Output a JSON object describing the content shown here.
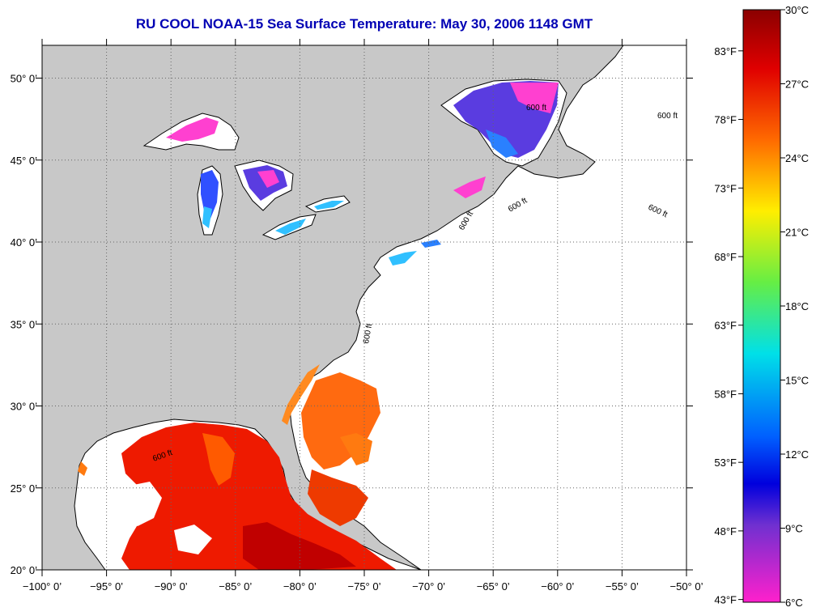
{
  "title": "RU COOL  NOAA-15  Sea Surface Temperature:  May 30, 2006 1148 GMT",
  "map": {
    "lon_range": [
      -100,
      -50
    ],
    "lat_range": [
      20,
      52
    ],
    "lon_ticks": [
      {
        "value": -100,
        "label": "−100° 0’"
      },
      {
        "value": -95,
        "label": "−95° 0’"
      },
      {
        "value": -90,
        "label": "−90° 0’"
      },
      {
        "value": -85,
        "label": "−85° 0’"
      },
      {
        "value": -80,
        "label": "−80° 0’"
      },
      {
        "value": -75,
        "label": "−75° 0’"
      },
      {
        "value": -70,
        "label": "−70° 0’"
      },
      {
        "value": -65,
        "label": "−65° 0’"
      },
      {
        "value": -60,
        "label": "−60° 0’"
      },
      {
        "value": -55,
        "label": "−55° 0’"
      },
      {
        "value": -50,
        "label": "−50° 0’"
      }
    ],
    "lat_ticks": [
      {
        "value": 20,
        "label": "20° 0’"
      },
      {
        "value": 25,
        "label": "25° 0’"
      },
      {
        "value": 30,
        "label": "30° 0’"
      },
      {
        "value": 35,
        "label": "35° 0’"
      },
      {
        "value": 40,
        "label": "40° 0’"
      },
      {
        "value": 45,
        "label": "45° 0’"
      },
      {
        "value": 50,
        "label": "50° 0’"
      }
    ],
    "contour_labels": [
      "600 ft",
      "600 ft",
      "600 ft",
      "600 ft",
      "600 ft",
      "600 ft",
      "600 ft"
    ],
    "colors": {
      "land": "#c8c8c8",
      "ocean_no_data": "#ffffff",
      "grid": "#666666",
      "coast": "#000000"
    }
  },
  "colorbar": {
    "range_c": [
      6,
      30
    ],
    "celsius_labels": [
      "30°C",
      "27°C",
      "24°C",
      "21°C",
      "18°C",
      "15°C",
      "12°C",
      "9°C",
      "6°C"
    ],
    "fahrenheit_labels": [
      "83°F",
      "78°F",
      "73°F",
      "68°F",
      "63°F",
      "58°F",
      "53°F",
      "48°F",
      "43°F"
    ],
    "fahrenheit_values": [
      83,
      78,
      73,
      68,
      63,
      58,
      53,
      48,
      43
    ],
    "gradient_stops": [
      {
        "t": 0.0,
        "color": "#8b0000"
      },
      {
        "t": 0.1,
        "color": "#e00000"
      },
      {
        "t": 0.22,
        "color": "#ff6a00"
      },
      {
        "t": 0.34,
        "color": "#ffee00"
      },
      {
        "t": 0.46,
        "color": "#66ee44"
      },
      {
        "t": 0.58,
        "color": "#00e0e8"
      },
      {
        "t": 0.72,
        "color": "#0060ff"
      },
      {
        "t": 0.8,
        "color": "#0000dd"
      },
      {
        "t": 0.87,
        "color": "#7030d0"
      },
      {
        "t": 1.0,
        "color": "#ff20cc"
      }
    ]
  }
}
